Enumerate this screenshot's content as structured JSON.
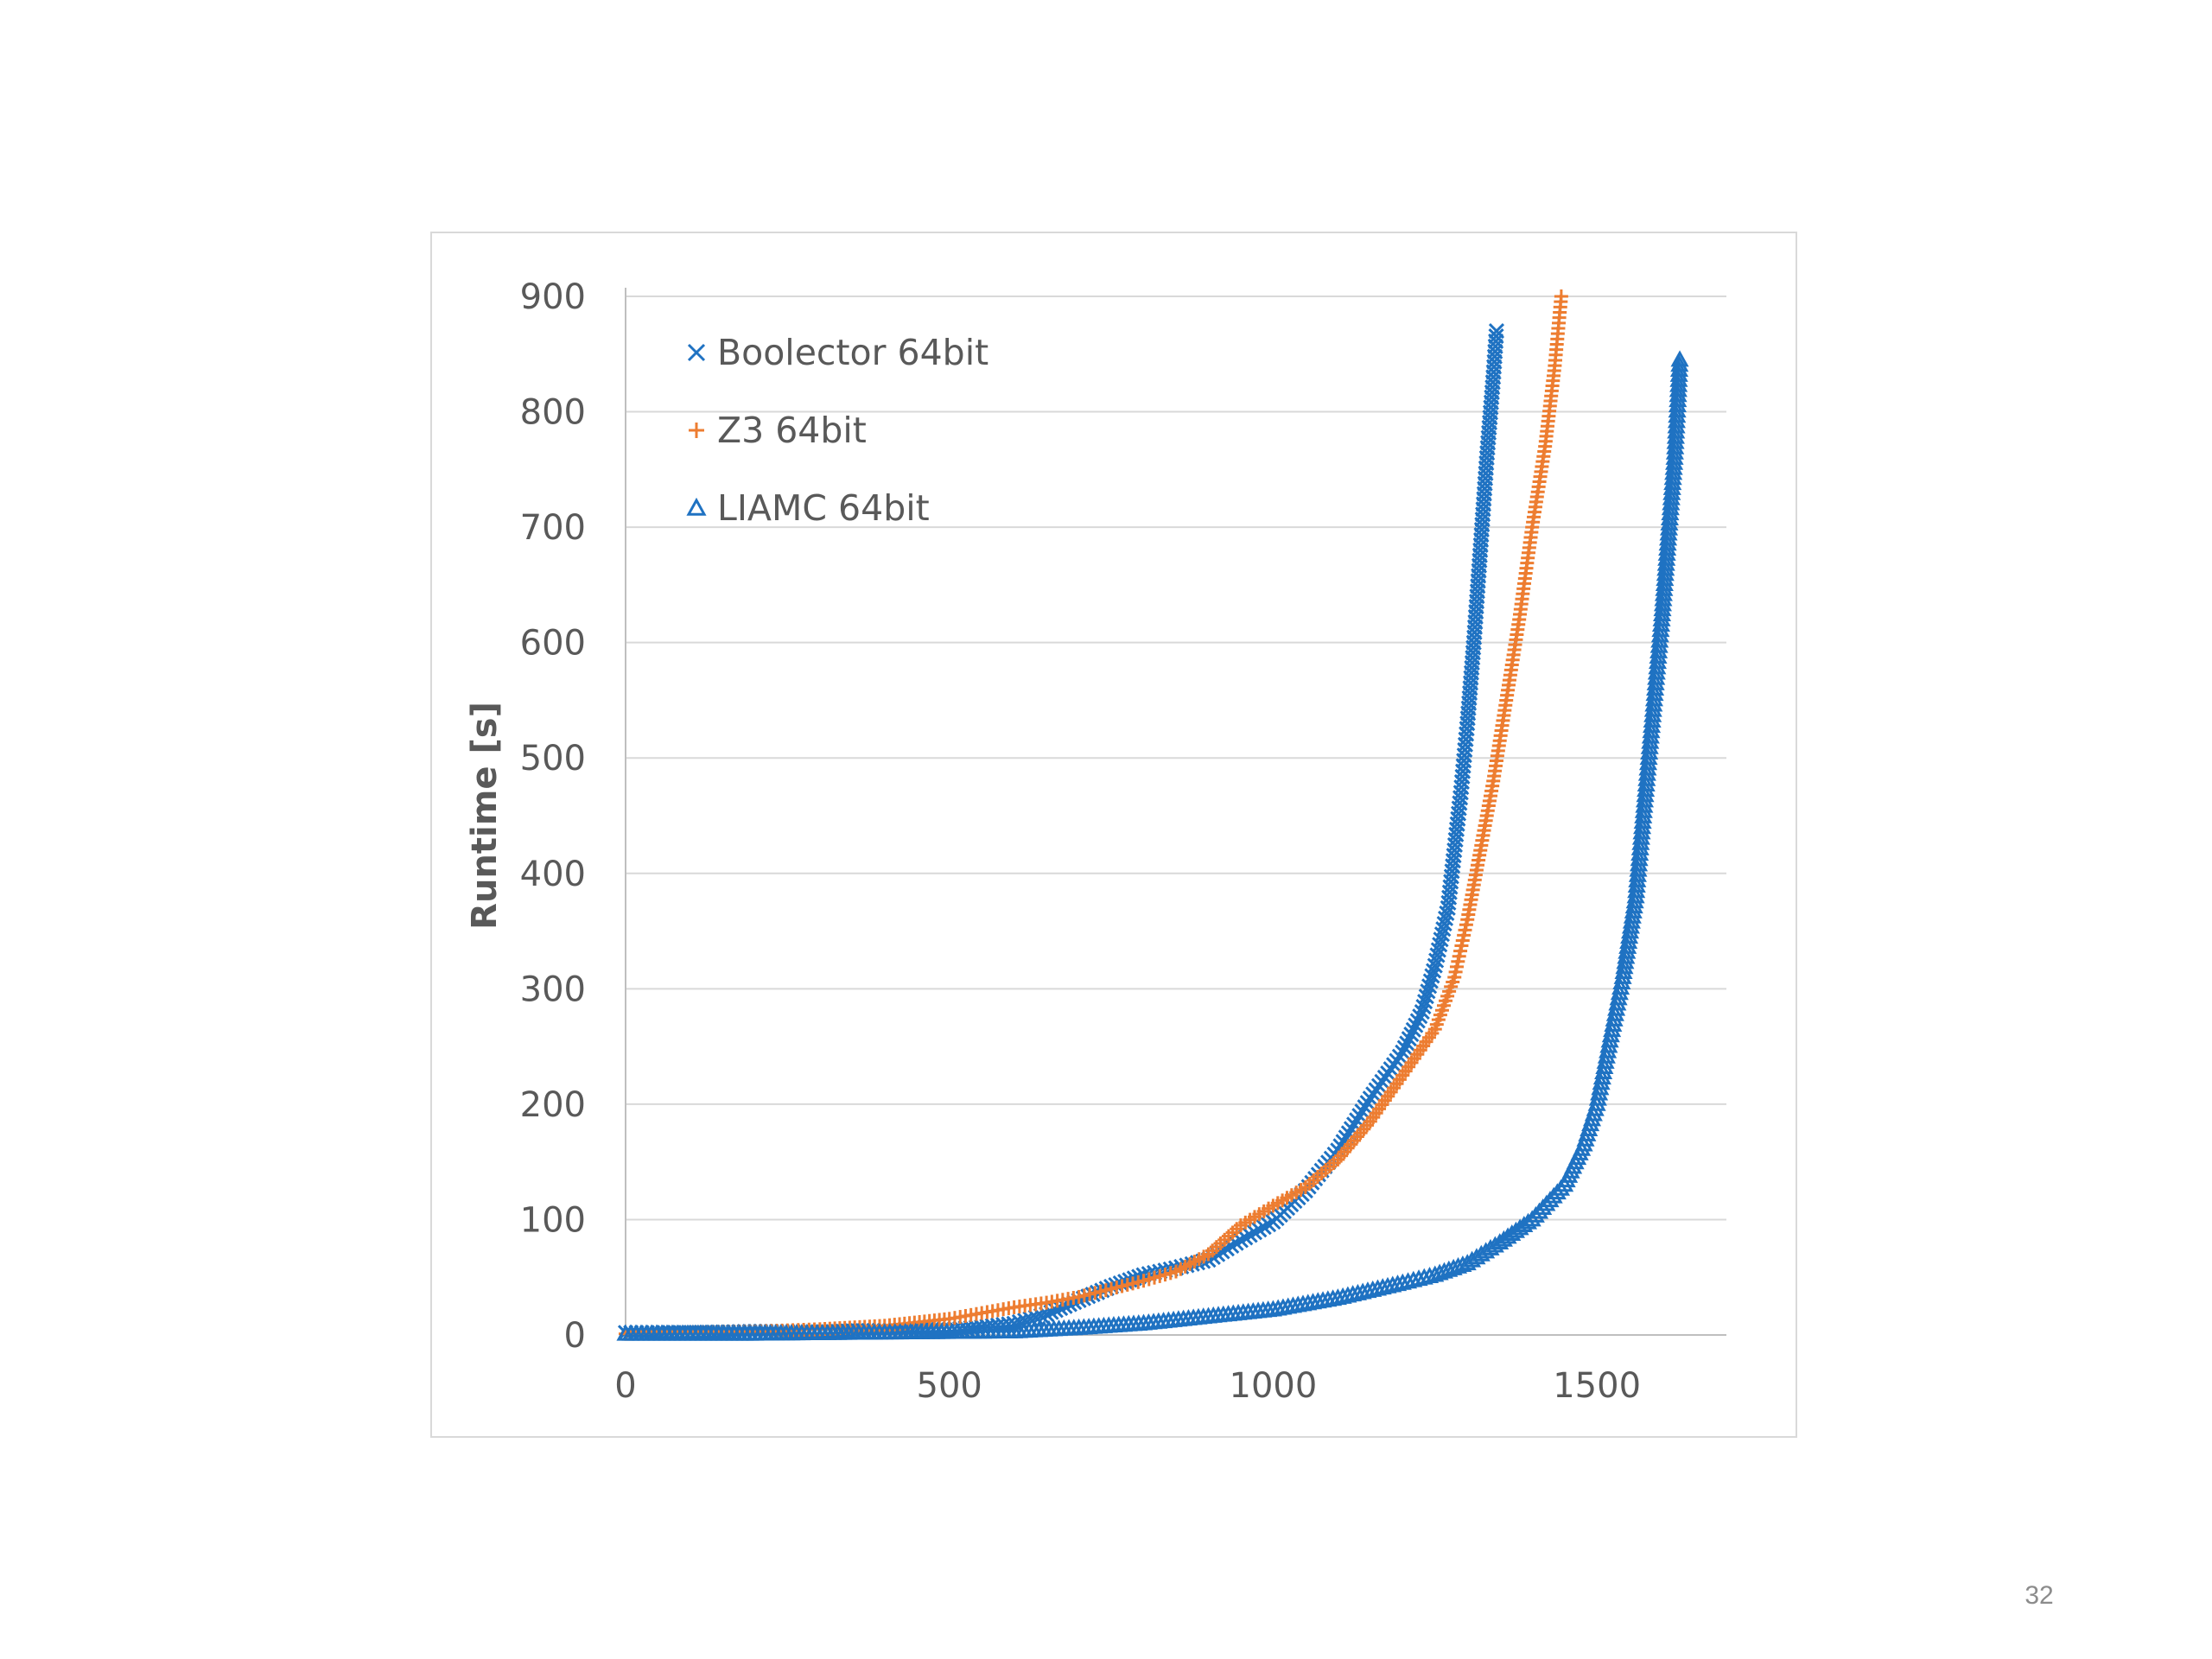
{
  "page_number": "32",
  "colors": {
    "blue": "#1f72c2",
    "orange": "#ed7d31",
    "grid": "#d9d9d9",
    "text": "#595959"
  },
  "chart_data": {
    "type": "scatter",
    "title": "",
    "xlabel": "",
    "ylabel": "Runtime [s]",
    "xlim": [
      0,
      1700
    ],
    "ylim": [
      0,
      900
    ],
    "x_ticks": [
      "0",
      "500",
      "1000",
      "1500"
    ],
    "y_ticks": [
      "0",
      "100",
      "200",
      "300",
      "400",
      "500",
      "600",
      "700",
      "800",
      "900"
    ],
    "grid": true,
    "legend_position": "top-left",
    "series": [
      {
        "name": "Boolector 64bit",
        "marker": "x",
        "color": "#1f72c2",
        "points": [
          [
            0,
            2
          ],
          [
            100,
            2
          ],
          [
            200,
            3
          ],
          [
            300,
            3
          ],
          [
            400,
            4
          ],
          [
            500,
            5
          ],
          [
            550,
            7
          ],
          [
            600,
            10
          ],
          [
            650,
            18
          ],
          [
            700,
            30
          ],
          [
            750,
            42
          ],
          [
            800,
            52
          ],
          [
            850,
            58
          ],
          [
            900,
            65
          ],
          [
            950,
            82
          ],
          [
            1000,
            98
          ],
          [
            1050,
            125
          ],
          [
            1100,
            160
          ],
          [
            1150,
            205
          ],
          [
            1200,
            245
          ],
          [
            1230,
            280
          ],
          [
            1250,
            320
          ],
          [
            1270,
            370
          ],
          [
            1280,
            420
          ],
          [
            1290,
            470
          ],
          [
            1300,
            530
          ],
          [
            1310,
            600
          ],
          [
            1320,
            680
          ],
          [
            1330,
            760
          ],
          [
            1340,
            830
          ],
          [
            1345,
            870
          ]
        ]
      },
      {
        "name": "Z3 64bit",
        "marker": "+",
        "color": "#ed7d31",
        "points": [
          [
            0,
            1
          ],
          [
            200,
            3
          ],
          [
            300,
            5
          ],
          [
            400,
            8
          ],
          [
            500,
            14
          ],
          [
            550,
            19
          ],
          [
            600,
            24
          ],
          [
            650,
            28
          ],
          [
            700,
            33
          ],
          [
            750,
            40
          ],
          [
            800,
            47
          ],
          [
            850,
            55
          ],
          [
            900,
            70
          ],
          [
            950,
            95
          ],
          [
            1000,
            112
          ],
          [
            1050,
            128
          ],
          [
            1100,
            152
          ],
          [
            1150,
            185
          ],
          [
            1200,
            225
          ],
          [
            1250,
            265
          ],
          [
            1280,
            310
          ],
          [
            1300,
            360
          ],
          [
            1320,
            420
          ],
          [
            1340,
            480
          ],
          [
            1360,
            550
          ],
          [
            1380,
            620
          ],
          [
            1400,
            700
          ],
          [
            1420,
            770
          ],
          [
            1435,
            840
          ],
          [
            1445,
            900
          ]
        ]
      },
      {
        "name": "LIAMC 64bit",
        "marker": "triangle",
        "color": "#1f72c2",
        "points": [
          [
            0,
            1
          ],
          [
            200,
            1
          ],
          [
            400,
            2
          ],
          [
            600,
            3
          ],
          [
            700,
            6
          ],
          [
            800,
            10
          ],
          [
            900,
            16
          ],
          [
            1000,
            22
          ],
          [
            1100,
            32
          ],
          [
            1200,
            45
          ],
          [
            1250,
            52
          ],
          [
            1300,
            62
          ],
          [
            1350,
            80
          ],
          [
            1400,
            100
          ],
          [
            1450,
            130
          ],
          [
            1480,
            165
          ],
          [
            1500,
            200
          ],
          [
            1520,
            255
          ],
          [
            1540,
            310
          ],
          [
            1560,
            380
          ],
          [
            1570,
            440
          ],
          [
            1580,
            500
          ],
          [
            1590,
            560
          ],
          [
            1600,
            620
          ],
          [
            1610,
            690
          ],
          [
            1620,
            760
          ],
          [
            1625,
            810
          ],
          [
            1628,
            845
          ]
        ]
      }
    ]
  }
}
